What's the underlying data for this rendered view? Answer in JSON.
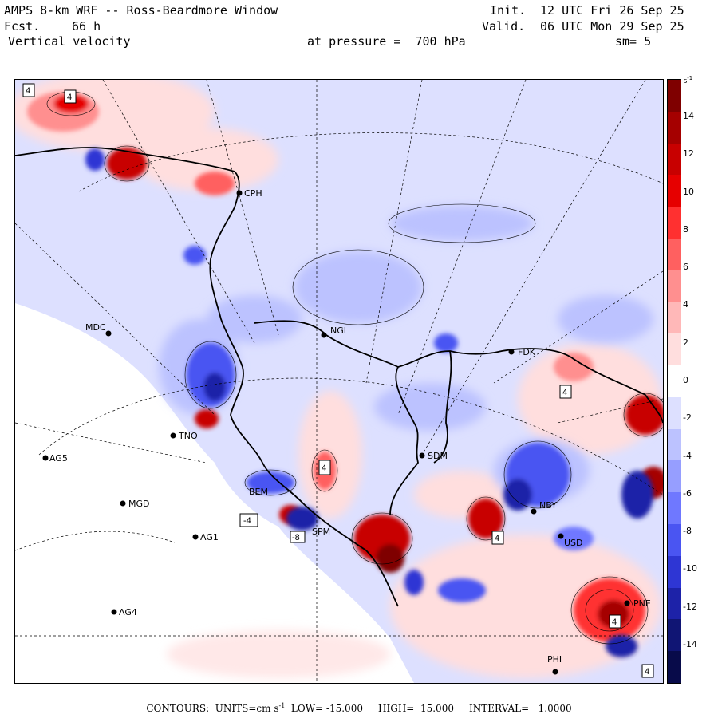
{
  "header": {
    "title": "AMPS 8-km WRF -- Ross-Beardmore Window",
    "forecast_label": "Fcst.",
    "forecast_hours": "66 h",
    "variable": "Vertical velocity",
    "pressure_label": "at pressure =  700 hPa",
    "smoothing": "sm= 5",
    "init_label": "Init.",
    "init_time": "12 UTC Fri 26 Sep 25",
    "valid_label": "Valid.",
    "valid_time": "06 UTC Mon 29 Sep 25"
  },
  "colorbar": {
    "units": "cm s",
    "units_exp": "-1",
    "ticks": [
      "14",
      "12",
      "10",
      "8",
      "6",
      "4",
      "2",
      "0",
      "-2",
      "-4",
      "-6",
      "-8",
      "-10",
      "-12",
      "-14"
    ],
    "colors": [
      "#7f0000",
      "#a50000",
      "#c80000",
      "#e60000",
      "#ff3030",
      "#ff6060",
      "#ff8f8f",
      "#ffb8b8",
      "#ffdede",
      "#ffffff",
      "#dde0ff",
      "#bcc2ff",
      "#969eff",
      "#6f78ff",
      "#4a55f2",
      "#2e36d4",
      "#1d22a8",
      "#101574",
      "#080b4a"
    ]
  },
  "footer": {
    "text": "CONTOURS:  UNITS=cm s",
    "exp": "-1",
    "rest": "  LOW= -15.000     HIGH=  15.000     INTERVAL=   1.0000"
  },
  "stations": [
    {
      "id": "CPH"
    },
    {
      "id": "MDC"
    },
    {
      "id": "NGL"
    },
    {
      "id": "FDK"
    },
    {
      "id": "TNO"
    },
    {
      "id": "AG5"
    },
    {
      "id": "SDM"
    },
    {
      "id": "MGD"
    },
    {
      "id": "NBY"
    },
    {
      "id": "AG1"
    },
    {
      "id": "USD"
    },
    {
      "id": "PNE"
    },
    {
      "id": "AG4"
    },
    {
      "id": "PHI"
    },
    {
      "id": "BEM"
    },
    {
      "id": "SPM"
    }
  ],
  "contour_box_labels": [
    "4",
    "4",
    "4",
    "4",
    "-4",
    "-8",
    "4",
    "4",
    "4"
  ]
}
